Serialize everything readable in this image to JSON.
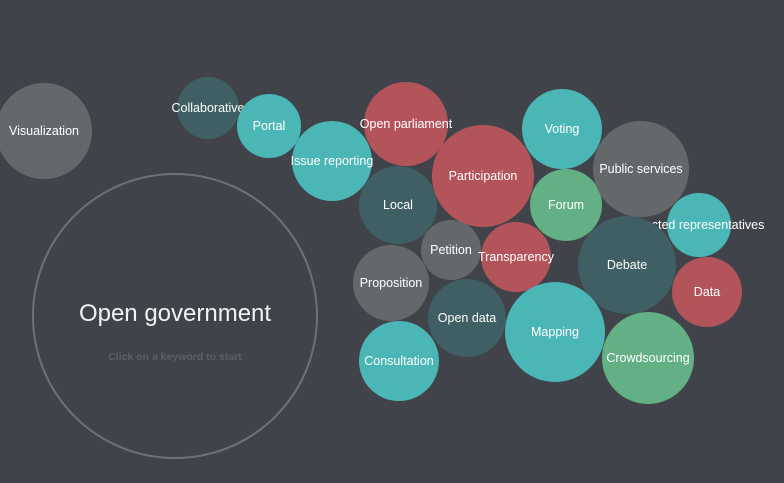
{
  "center": {
    "title": "Open government",
    "hint": "Click on a keyword to start"
  },
  "colors": {
    "background": "#40444a",
    "gray": "#65686b",
    "dark_teal": "#3f5f64",
    "teal": "#4bb6b6",
    "red": "#b3545b",
    "green": "#62b083",
    "ring": "#6e7177"
  },
  "keywords": [
    {
      "label": "Visualization",
      "color": "gray"
    },
    {
      "label": "Collaborative",
      "color": "dark_teal"
    },
    {
      "label": "Portal",
      "color": "teal"
    },
    {
      "label": "Issue reporting",
      "color": "teal"
    },
    {
      "label": "Open parliament",
      "color": "red"
    },
    {
      "label": "Local",
      "color": "dark_teal"
    },
    {
      "label": "Participation",
      "color": "red"
    },
    {
      "label": "Voting",
      "color": "teal"
    },
    {
      "label": "Forum",
      "color": "green"
    },
    {
      "label": "Public services",
      "color": "gray"
    },
    {
      "label": "Elected representatives",
      "color": "teal"
    },
    {
      "label": "Petition",
      "color": "gray"
    },
    {
      "label": "Transparency",
      "color": "red"
    },
    {
      "label": "Debate",
      "color": "dark_teal"
    },
    {
      "label": "Data",
      "color": "red"
    },
    {
      "label": "Proposition",
      "color": "gray"
    },
    {
      "label": "Open data",
      "color": "dark_teal"
    },
    {
      "label": "Mapping",
      "color": "teal"
    },
    {
      "label": "Consultation",
      "color": "teal"
    },
    {
      "label": "Crowdsourcing",
      "color": "green"
    }
  ]
}
